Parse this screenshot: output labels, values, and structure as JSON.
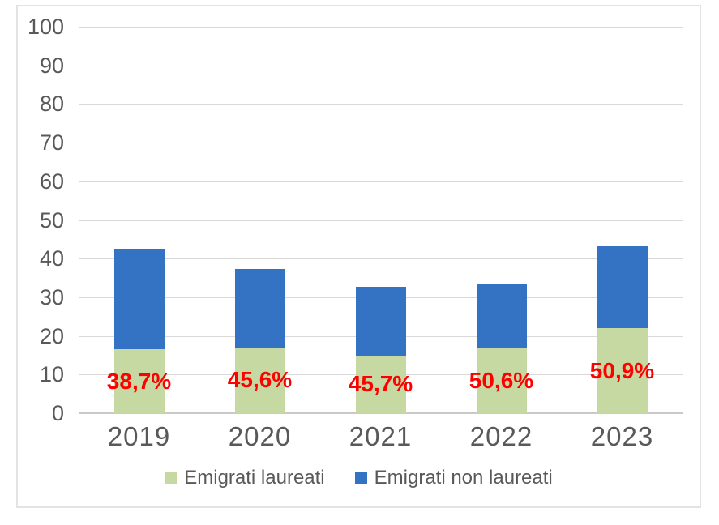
{
  "chart_data": {
    "type": "bar",
    "stacked": true,
    "categories": [
      "2019",
      "2020",
      "2021",
      "2022",
      "2023"
    ],
    "series": [
      {
        "name": "Emigrati laureati",
        "color": "#c6d9a2",
        "values": [
          16.5,
          17.0,
          14.9,
          16.9,
          22.0
        ]
      },
      {
        "name": "Emigrati non laureati",
        "color": "#3472c4",
        "values": [
          26.1,
          20.3,
          17.7,
          16.5,
          21.2
        ]
      }
    ],
    "stack_totals": [
      42.6,
      37.3,
      32.6,
      33.4,
      43.2
    ],
    "data_labels": {
      "meaning": "quota laureati sul totale",
      "color": "#ff0000",
      "values": [
        "38,7%",
        "45,6%",
        "45,7%",
        "50,6%",
        "50,9%"
      ]
    },
    "y_axis": {
      "min": 0,
      "max": 100,
      "step": 10,
      "ticks": [
        "0",
        "10",
        "20",
        "30",
        "40",
        "50",
        "60",
        "70",
        "80",
        "90",
        "100"
      ]
    },
    "grid": true,
    "legend_position": "bottom"
  },
  "legend": {
    "items": [
      {
        "label": "Emigrati laureati",
        "color": "#c6d9a2"
      },
      {
        "label": "Emigrati non laureati",
        "color": "#3472c4"
      }
    ]
  },
  "colors": {
    "laureati_green": "#c6d9a2",
    "non_laureati_blue": "#3472c4",
    "data_label_red": "#ff0000",
    "axis_text_gray": "#595959",
    "gridline_gray": "#d9d9d9",
    "axis_line_gray": "#c9c9c9",
    "frame_border_gray": "#e3e3e3",
    "background": "#ffffff"
  }
}
